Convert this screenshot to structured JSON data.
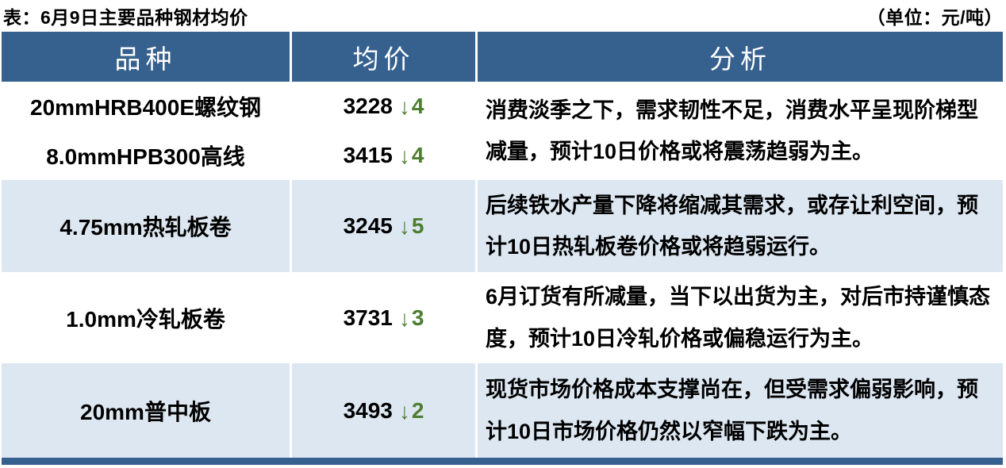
{
  "caption": "表：6月9日主要品种钢材均价",
  "unit": "（单位：元/吨）",
  "columns": {
    "product": "品种",
    "price": "均价",
    "analysis": "分析"
  },
  "icons": {
    "down_arrow": "↓"
  },
  "colors": {
    "header_bg": "#36618F",
    "alt_row_bg": "#DDE7F1",
    "down_green": "#4E7E32",
    "bottom_bar": "#36618F"
  },
  "rows": [
    {
      "products": [
        {
          "name": "20mmHRB400E螺纹钢",
          "price": "3228",
          "change": "4"
        },
        {
          "name": "8.0mmHPB300高线",
          "price": "3415",
          "change": "4"
        }
      ],
      "analysis": "消费淡季之下，需求韧性不足，消费水平呈现阶梯型减量，预计10日价格或将震荡趋弱为主。"
    },
    {
      "products": [
        {
          "name": "4.75mm热轧板卷",
          "price": "3245",
          "change": "5"
        }
      ],
      "analysis": "后续铁水产量下降将缩减其需求，或存让利空间，预计10日热轧板卷价格或将趋弱运行。"
    },
    {
      "products": [
        {
          "name": "1.0mm冷轧板卷",
          "price": "3731",
          "change": "3"
        }
      ],
      "analysis": "6月订货有所减量，当下以出货为主，对后市持谨慎态度，预计10日冷轧价格或偏稳运行为主。"
    },
    {
      "products": [
        {
          "name": "20mm普中板",
          "price": "3493",
          "change": "2"
        }
      ],
      "analysis": "现货市场价格成本支撑尚在，但受需求偏弱影响，预计10日市场价格仍然以窄幅下跌为主。"
    }
  ]
}
